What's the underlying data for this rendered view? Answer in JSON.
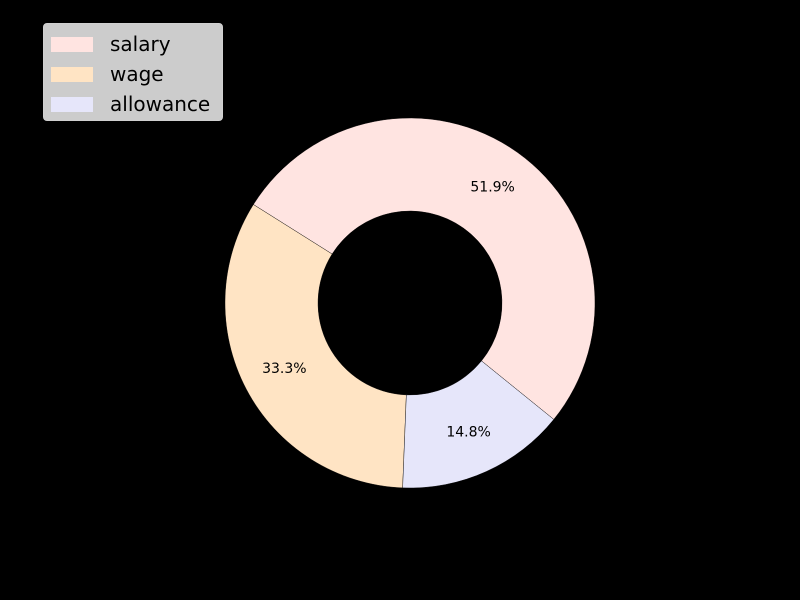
{
  "chart_data": {
    "type": "pie",
    "variant": "donut",
    "title": "",
    "slices": [
      {
        "label": "salary",
        "value": 51.9,
        "display": "51.9%",
        "color": "#ffe4e1"
      },
      {
        "label": "wage",
        "value": 33.3,
        "display": "33.3%",
        "color": "#ffe4c4"
      },
      {
        "label": "allowance",
        "value": 14.8,
        "display": "14.8%",
        "color": "#e6e6fa"
      }
    ],
    "start_angle_deg": -39,
    "direction": "counterclockwise",
    "background": "#000000",
    "legend": {
      "placement": "top-left",
      "background": "#cccccc"
    }
  }
}
